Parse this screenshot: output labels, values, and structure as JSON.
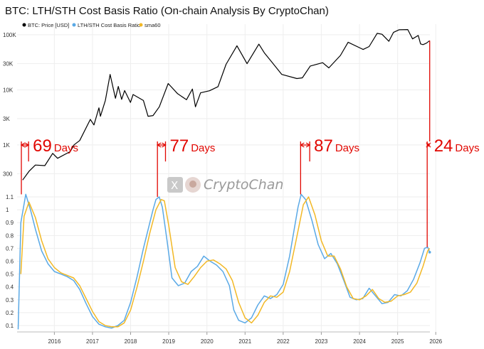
{
  "title": "BTC: LTH/STH Cost Basis Ratio (On-chain Analysis By CryptoChan)",
  "watermark": {
    "text": "CryptoChan",
    "x_letter": "X"
  },
  "colors": {
    "price": "#000000",
    "ratio": "#5aa9e6",
    "sma": "#f2b825",
    "marker": "#e10600",
    "grid": "#eeeeee"
  },
  "chart_data": [
    {
      "type": "line",
      "panel": "top",
      "y_scale": "log",
      "ylim": [
        200,
        130000
      ],
      "y_ticks": [
        {
          "value": 300,
          "label": "300"
        },
        {
          "value": 1000,
          "label": "1K"
        },
        {
          "value": 3000,
          "label": "3K"
        },
        {
          "value": 10000,
          "label": "10K"
        },
        {
          "value": 30000,
          "label": "30K"
        },
        {
          "value": 100000,
          "label": "100K"
        }
      ],
      "series": [
        {
          "name": "BTC: Price [USD]",
          "x": [
            "2015-09-01",
            "2015-11-01",
            "2016-01-01",
            "2016-04-01",
            "2016-06-15",
            "2016-08-01",
            "2016-12-01",
            "2017-01-05",
            "2017-03-01",
            "2017-06-10",
            "2017-07-15",
            "2017-09-01",
            "2017-09-15",
            "2017-11-01",
            "2017-12-17",
            "2018-02-06",
            "2018-03-05",
            "2018-04-06",
            "2018-05-05",
            "2018-06-30",
            "2018-07-25",
            "2018-11-01",
            "2018-12-15",
            "2019-02-01",
            "2019-04-02",
            "2019-06-26",
            "2019-09-24",
            "2019-12-18",
            "2020-02-13",
            "2020-03-13",
            "2020-05-01",
            "2020-07-25",
            "2020-10-15",
            "2020-12-31",
            "2021-04-14",
            "2021-07-20",
            "2021-11-10",
            "2022-01-01",
            "2022-06-18",
            "2022-11-09",
            "2023-01-01",
            "2023-03-17",
            "2023-07-14",
            "2023-09-11",
            "2023-12-31",
            "2024-03-14",
            "2024-08-05",
            "2024-10-01",
            "2024-12-17",
            "2025-02-01",
            "2025-04-08",
            "2025-05-22",
            "2025-07-14",
            "2025-10-06",
            "2025-11-21",
            "2026-01-14",
            "2026-02-06",
            "2026-03-01",
            "2026-04-01",
            "2026-05-04"
          ],
          "y": [
            230,
            330,
            430,
            420,
            700,
            570,
            760,
            1000,
            1200,
            2900,
            2300,
            4700,
            3300,
            6400,
            19000,
            7000,
            11500,
            6700,
            9700,
            5900,
            8200,
            6400,
            3300,
            3400,
            4900,
            13000,
            8500,
            6600,
            10300,
            4900,
            8800,
            9600,
            11400,
            29000,
            63000,
            29800,
            67500,
            47000,
            19000,
            16000,
            16500,
            27000,
            31000,
            25000,
            42000,
            73000,
            54000,
            61000,
            106000,
            102000,
            76000,
            110000,
            123000,
            124000,
            84000,
            97000,
            68000,
            66000,
            70000,
            78000
          ]
        }
      ]
    },
    {
      "type": "line",
      "panel": "bottom",
      "ylim": [
        0.05,
        1.15
      ],
      "y_ticks": [
        0.1,
        0.2,
        0.3,
        0.4,
        0.5,
        0.6,
        0.7,
        0.8,
        0.9,
        1,
        1.1
      ],
      "x_ticks": [
        "2016",
        "2017",
        "2018",
        "2019",
        "2020",
        "2021",
        "2022",
        "2023",
        "2024",
        "2025",
        "2026"
      ],
      "series": [
        {
          "name": "LTH/STH Cost Basis Ratio",
          "x": [
            "2015-07-20",
            "2015-08-15",
            "2015-10-01",
            "2015-11-15",
            "2016-01-01",
            "2016-03-01",
            "2016-05-01",
            "2016-07-01",
            "2016-09-01",
            "2016-11-01",
            "2017-01-01",
            "2017-03-01",
            "2017-05-01",
            "2017-07-01",
            "2017-09-01",
            "2017-11-01",
            "2018-01-01",
            "2018-03-01",
            "2018-05-01",
            "2018-07-01",
            "2018-09-01",
            "2018-11-01",
            "2019-01-01",
            "2019-02-01",
            "2019-03-01",
            "2019-04-01",
            "2019-05-01",
            "2019-06-15",
            "2019-08-01",
            "2019-10-01",
            "2019-12-01",
            "2020-02-01",
            "2020-04-01",
            "2020-06-01",
            "2020-08-01",
            "2020-10-01",
            "2020-12-01",
            "2021-02-01",
            "2021-03-15",
            "2021-05-01",
            "2021-07-01",
            "2021-09-01",
            "2021-11-01",
            "2022-01-01",
            "2022-03-01",
            "2022-05-01",
            "2022-07-01",
            "2022-09-01",
            "2022-10-15",
            "2022-11-20",
            "2022-12-20",
            "2023-02-01",
            "2023-04-01",
            "2023-06-01",
            "2023-08-01",
            "2023-10-01",
            "2023-12-01",
            "2024-02-01",
            "2024-04-01",
            "2024-06-01",
            "2024-08-01",
            "2024-10-01",
            "2024-12-01",
            "2025-02-01",
            "2025-04-01",
            "2025-06-01",
            "2025-08-01",
            "2025-10-01",
            "2025-12-01",
            "2026-02-01",
            "2026-03-15",
            "2026-04-15",
            "2026-05-04"
          ],
          "y": [
            0.07,
            0.9,
            1.12,
            1.0,
            0.85,
            0.68,
            0.58,
            0.52,
            0.5,
            0.48,
            0.45,
            0.38,
            0.27,
            0.17,
            0.11,
            0.09,
            0.08,
            0.1,
            0.14,
            0.28,
            0.48,
            0.7,
            0.9,
            1.0,
            1.08,
            1.1,
            1.02,
            0.76,
            0.47,
            0.41,
            0.43,
            0.52,
            0.56,
            0.64,
            0.6,
            0.57,
            0.52,
            0.41,
            0.22,
            0.14,
            0.12,
            0.16,
            0.26,
            0.33,
            0.31,
            0.34,
            0.42,
            0.64,
            0.85,
            1.02,
            1.12,
            1.08,
            0.92,
            0.73,
            0.62,
            0.66,
            0.58,
            0.45,
            0.32,
            0.3,
            0.31,
            0.39,
            0.33,
            0.27,
            0.28,
            0.34,
            0.33,
            0.37,
            0.46,
            0.59,
            0.7,
            0.71,
            0.67
          ]
        },
        {
          "name": "sma60",
          "x": [
            "2015-08-15",
            "2015-09-15",
            "2015-11-01",
            "2016-01-01",
            "2016-03-01",
            "2016-05-01",
            "2016-07-01",
            "2016-09-01",
            "2016-11-01",
            "2017-01-01",
            "2017-03-01",
            "2017-05-01",
            "2017-07-01",
            "2017-09-01",
            "2017-11-01",
            "2018-01-01",
            "2018-03-01",
            "2018-05-01",
            "2018-07-01",
            "2018-09-01",
            "2018-11-01",
            "2019-01-01",
            "2019-03-01",
            "2019-04-20",
            "2019-05-20",
            "2019-07-01",
            "2019-09-01",
            "2019-11-01",
            "2020-01-01",
            "2020-03-01",
            "2020-05-01",
            "2020-07-01",
            "2020-09-01",
            "2020-11-01",
            "2021-01-01",
            "2021-03-01",
            "2021-05-01",
            "2021-07-01",
            "2021-09-01",
            "2021-11-01",
            "2022-01-01",
            "2022-03-01",
            "2022-05-01",
            "2022-07-01",
            "2022-09-01",
            "2022-11-01",
            "2023-01-10",
            "2023-03-01",
            "2023-05-01",
            "2023-07-01",
            "2023-09-01",
            "2023-11-01",
            "2024-01-01",
            "2024-03-01",
            "2024-05-01",
            "2024-07-01",
            "2024-09-01",
            "2024-11-01",
            "2025-01-01",
            "2025-03-01",
            "2025-05-01",
            "2025-07-01",
            "2025-09-01",
            "2025-11-01",
            "2026-01-01",
            "2026-03-01",
            "2026-04-15",
            "2026-05-04"
          ],
          "y": [
            0.5,
            0.95,
            1.06,
            0.94,
            0.76,
            0.62,
            0.55,
            0.51,
            0.49,
            0.47,
            0.41,
            0.31,
            0.21,
            0.13,
            0.1,
            0.09,
            0.09,
            0.12,
            0.22,
            0.4,
            0.6,
            0.82,
            1.0,
            1.08,
            1.07,
            0.88,
            0.55,
            0.44,
            0.42,
            0.48,
            0.55,
            0.6,
            0.61,
            0.58,
            0.54,
            0.45,
            0.28,
            0.16,
            0.12,
            0.18,
            0.28,
            0.33,
            0.32,
            0.36,
            0.52,
            0.76,
            1.04,
            1.1,
            0.96,
            0.76,
            0.64,
            0.64,
            0.54,
            0.4,
            0.31,
            0.3,
            0.33,
            0.38,
            0.31,
            0.28,
            0.29,
            0.33,
            0.34,
            0.36,
            0.43,
            0.56,
            0.68,
            0.7
          ]
        }
      ]
    }
  ],
  "annotations": [
    {
      "start": "2015-08-20",
      "end": "2015-10-28",
      "days": "69",
      "unit": "Days"
    },
    {
      "start": "2019-03-15",
      "end": "2019-05-31",
      "days": "77",
      "unit": "Days"
    },
    {
      "start": "2022-12-15",
      "end": "2023-03-12",
      "days": "87",
      "unit": "Days"
    },
    {
      "start": "2026-04-10",
      "end": "2026-05-04",
      "days": "24",
      "unit": "Days"
    }
  ]
}
